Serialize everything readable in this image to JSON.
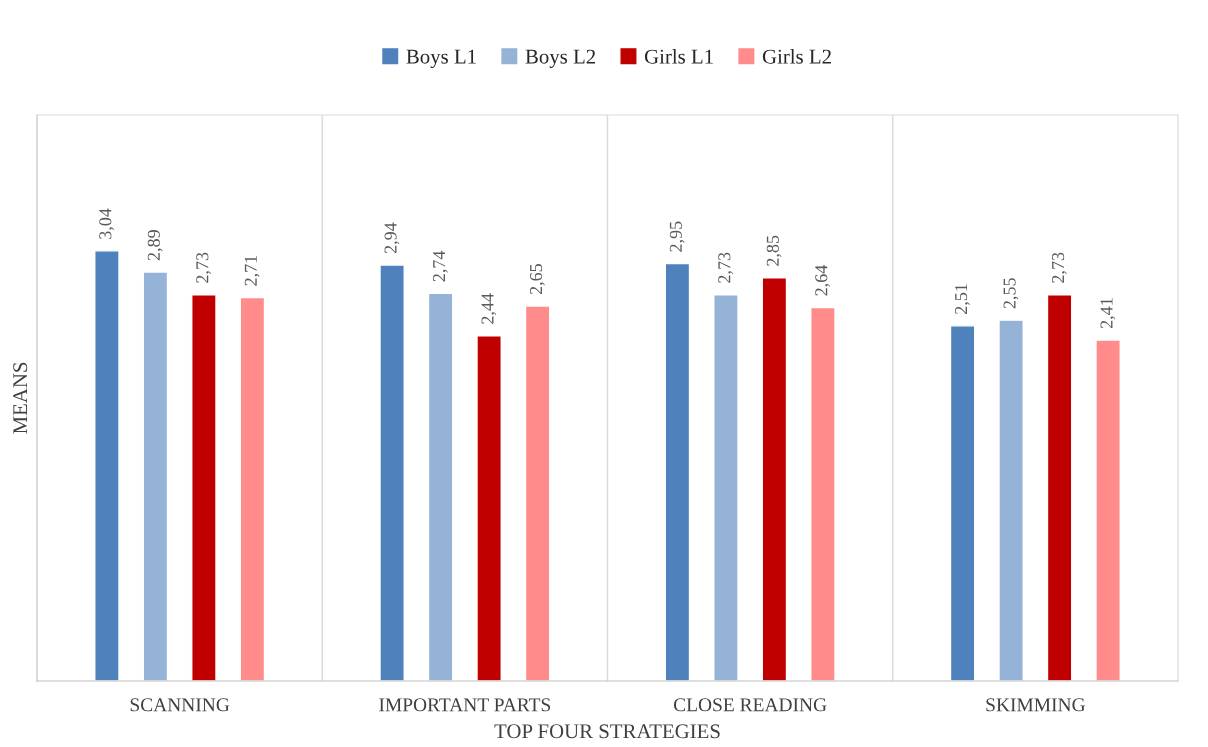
{
  "chart_data": {
    "type": "bar",
    "xlabel": "TOP FOUR STRATEGIES",
    "ylabel": "MEANS",
    "categories": [
      "SCANNING",
      "IMPORTANT PARTS",
      "CLOSE READING",
      "SKIMMING"
    ],
    "series": [
      {
        "name": "Boys L1",
        "color": "#4f81bd",
        "values": [
          3.04,
          2.94,
          2.95,
          2.51
        ],
        "value_labels": [
          "3,04",
          "2,94",
          "2,95",
          "2,51"
        ]
      },
      {
        "name": "Boys L2",
        "color": "#95b3d7",
        "values": [
          2.89,
          2.74,
          2.73,
          2.55
        ],
        "value_labels": [
          "2,89",
          "2,74",
          "2,73",
          "2,55"
        ]
      },
      {
        "name": "Girls L1",
        "color": "#c00000",
        "values": [
          2.73,
          2.44,
          2.85,
          2.73
        ],
        "value_labels": [
          "2,73",
          "2,44",
          "2,85",
          "2,73"
        ]
      },
      {
        "name": "Girls L2",
        "color": "#ff8b8b",
        "values": [
          2.71,
          2.65,
          2.64,
          2.41
        ],
        "value_labels": [
          "2,71",
          "2,65",
          "2,64",
          "2,41"
        ]
      }
    ],
    "ylim": [
      0,
      4
    ],
    "tick_labels": "x",
    "grid": "x",
    "legend": "top"
  }
}
